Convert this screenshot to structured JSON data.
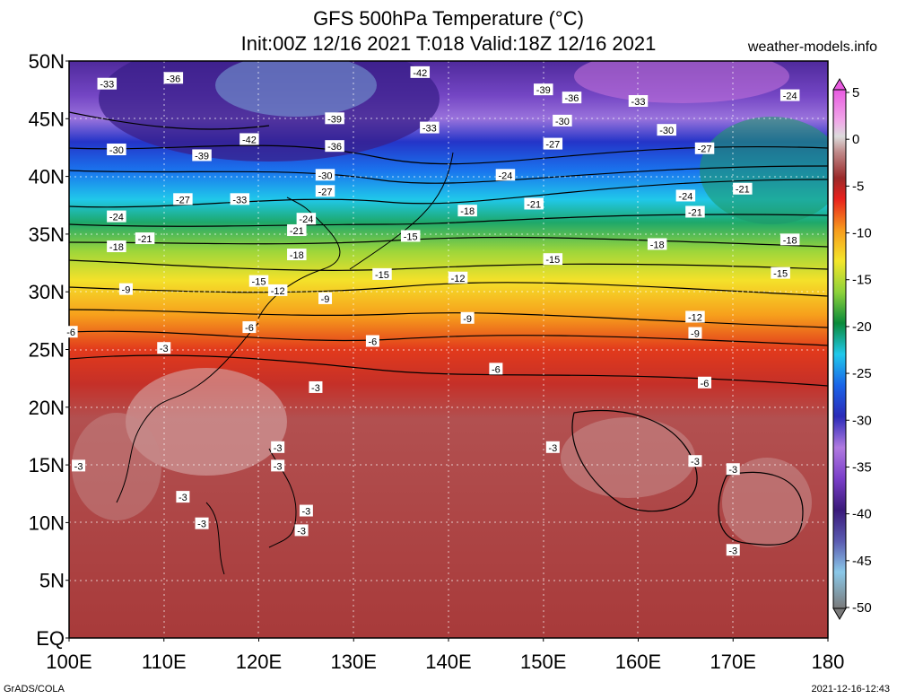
{
  "title_line1": "GFS 500hPa Temperature (°C)",
  "title_line2": "Init:00Z 12/16 2021 T:018 Valid:18Z 12/16 2021",
  "site": "weather-models.info",
  "credit": "GrADS/COLA",
  "timestamp": "2021-12-16-12:43",
  "lat_labels": [
    "50N",
    "45N",
    "40N",
    "35N",
    "30N",
    "25N",
    "20N",
    "15N",
    "10N",
    "5N",
    "EQ"
  ],
  "lon_labels": [
    "100E",
    "110E",
    "120E",
    "130E",
    "140E",
    "150E",
    "160E",
    "170E",
    "180"
  ],
  "colorbar_labels": [
    "5",
    "0",
    "-5",
    "-10",
    "-15",
    "-20",
    "-25",
    "-30",
    "-35",
    "-40",
    "-45",
    "-50"
  ],
  "contour_labels": [
    {
      "text": "-33",
      "lon": 104,
      "lat": 48
    },
    {
      "text": "-36",
      "lon": 111,
      "lat": 48.5
    },
    {
      "text": "-42",
      "lon": 137,
      "lat": 49
    },
    {
      "text": "-39",
      "lon": 150,
      "lat": 47.5
    },
    {
      "text": "-36",
      "lon": 153,
      "lat": 46.8
    },
    {
      "text": "-33",
      "lon": 160,
      "lat": 46.5
    },
    {
      "text": "-24",
      "lon": 176,
      "lat": 47
    },
    {
      "text": "-39",
      "lon": 128,
      "lat": 45
    },
    {
      "text": "-33",
      "lon": 138,
      "lat": 44.2
    },
    {
      "text": "-30",
      "lon": 152,
      "lat": 44.8
    },
    {
      "text": "-30",
      "lon": 163,
      "lat": 44
    },
    {
      "text": "-42",
      "lon": 119,
      "lat": 43.2
    },
    {
      "text": "-36",
      "lon": 128,
      "lat": 42.6
    },
    {
      "text": "-27",
      "lon": 151,
      "lat": 42.8
    },
    {
      "text": "-27",
      "lon": 167,
      "lat": 42.4
    },
    {
      "text": "-30",
      "lon": 105,
      "lat": 42.3
    },
    {
      "text": "-39",
      "lon": 114,
      "lat": 41.8
    },
    {
      "text": "-30",
      "lon": 127,
      "lat": 40.1
    },
    {
      "text": "-24",
      "lon": 146,
      "lat": 40.1
    },
    {
      "text": "-27",
      "lon": 127,
      "lat": 38.7
    },
    {
      "text": "-21",
      "lon": 171,
      "lat": 38.9
    },
    {
      "text": "-27",
      "lon": 112,
      "lat": 38
    },
    {
      "text": "-33",
      "lon": 118,
      "lat": 38
    },
    {
      "text": "-24",
      "lon": 165,
      "lat": 38.3
    },
    {
      "text": "-21",
      "lon": 149,
      "lat": 37.6
    },
    {
      "text": "-18",
      "lon": 142,
      "lat": 37
    },
    {
      "text": "-21",
      "lon": 166,
      "lat": 36.9
    },
    {
      "text": "-24",
      "lon": 105,
      "lat": 36.5
    },
    {
      "text": "-24",
      "lon": 125,
      "lat": 36.3
    },
    {
      "text": "-21",
      "lon": 124,
      "lat": 35.3
    },
    {
      "text": "-15",
      "lon": 136,
      "lat": 34.8
    },
    {
      "text": "-21",
      "lon": 108,
      "lat": 34.6
    },
    {
      "text": "-18",
      "lon": 105,
      "lat": 33.9
    },
    {
      "text": "-18",
      "lon": 162,
      "lat": 34.1
    },
    {
      "text": "-18",
      "lon": 176,
      "lat": 34.5
    },
    {
      "text": "-18",
      "lon": 124,
      "lat": 33.2
    },
    {
      "text": "-15",
      "lon": 151,
      "lat": 32.8
    },
    {
      "text": "-15",
      "lon": 133,
      "lat": 31.5
    },
    {
      "text": "-15",
      "lon": 175,
      "lat": 31.6
    },
    {
      "text": "-15",
      "lon": 120,
      "lat": 30.9
    },
    {
      "text": "-12",
      "lon": 141,
      "lat": 31.2
    },
    {
      "text": "-12",
      "lon": 122,
      "lat": 30.1
    },
    {
      "text": "-9",
      "lon": 106,
      "lat": 30.2
    },
    {
      "text": "-9",
      "lon": 127,
      "lat": 29.4
    },
    {
      "text": "-9",
      "lon": 142,
      "lat": 27.7
    },
    {
      "text": "-12",
      "lon": 166,
      "lat": 27.8
    },
    {
      "text": "-6",
      "lon": 100.2,
      "lat": 26.5
    },
    {
      "text": "-6",
      "lon": 119,
      "lat": 26.9
    },
    {
      "text": "-9",
      "lon": 166,
      "lat": 26.4
    },
    {
      "text": "-6",
      "lon": 132,
      "lat": 25.7
    },
    {
      "text": "-3",
      "lon": 110,
      "lat": 25.1
    },
    {
      "text": "-6",
      "lon": 145,
      "lat": 23.3
    },
    {
      "text": "-6",
      "lon": 167,
      "lat": 22.1
    },
    {
      "text": "-3",
      "lon": 126,
      "lat": 21.7
    },
    {
      "text": "-3",
      "lon": 151,
      "lat": 16.5
    },
    {
      "text": "-3",
      "lon": 122,
      "lat": 16.5
    },
    {
      "text": "-3",
      "lon": 166,
      "lat": 15.3
    },
    {
      "text": "-3",
      "lon": 101,
      "lat": 14.9
    },
    {
      "text": "-3",
      "lon": 122,
      "lat": 14.9
    },
    {
      "text": "-3",
      "lon": 170,
      "lat": 14.6
    },
    {
      "text": "-3",
      "lon": 112,
      "lat": 12.2
    },
    {
      "text": "-3",
      "lon": 125,
      "lat": 11
    },
    {
      "text": "-3",
      "lon": 114,
      "lat": 9.9
    },
    {
      "text": "-3",
      "lon": 124.5,
      "lat": 9.3
    },
    {
      "text": "-3",
      "lon": 170,
      "lat": 7.6
    }
  ]
}
